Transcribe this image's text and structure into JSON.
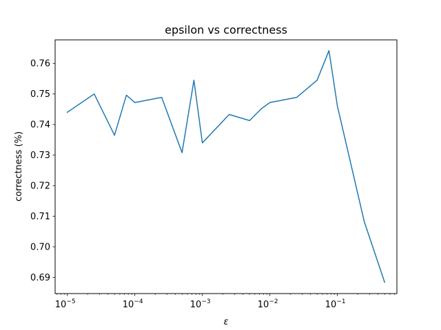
{
  "chart_data": {
    "type": "line",
    "title": "epsilon vs correctness",
    "xlabel": "ε",
    "ylabel": "correctness (%)",
    "xscale": "log",
    "xlim": [
      6.6e-06,
      0.76
    ],
    "ylim": [
      0.6847,
      0.7677
    ],
    "grid": false,
    "legend": "none",
    "series": [
      {
        "color": "#1f77b4",
        "x": [
          1e-05,
          2.5e-05,
          5e-05,
          7.5e-05,
          0.0001,
          0.00025,
          0.0005,
          0.00075,
          0.001,
          0.0025,
          0.005,
          0.0075,
          0.01,
          0.025,
          0.05,
          0.075,
          0.1,
          0.25,
          0.5
        ],
        "y": [
          0.744,
          0.75,
          0.7365,
          0.7496,
          0.7472,
          0.7489,
          0.7308,
          0.7545,
          0.734,
          0.7433,
          0.7413,
          0.7452,
          0.7472,
          0.7489,
          0.7545,
          0.7642,
          0.746,
          0.7082,
          0.6884
        ]
      }
    ],
    "xticks": [
      {
        "base": "10",
        "exp": "−5",
        "value": 1e-05
      },
      {
        "base": "10",
        "exp": "−4",
        "value": 0.0001
      },
      {
        "base": "10",
        "exp": "−3",
        "value": 0.001
      },
      {
        "base": "10",
        "exp": "−2",
        "value": 0.01
      },
      {
        "base": "10",
        "exp": "−1",
        "value": 0.1
      }
    ],
    "yticks": [
      {
        "label": "0.69",
        "value": 0.69
      },
      {
        "label": "0.70",
        "value": 0.7
      },
      {
        "label": "0.71",
        "value": 0.71
      },
      {
        "label": "0.72",
        "value": 0.72
      },
      {
        "label": "0.73",
        "value": 0.73
      },
      {
        "label": "0.74",
        "value": 0.74
      },
      {
        "label": "0.75",
        "value": 0.75
      },
      {
        "label": "0.76",
        "value": 0.76
      }
    ]
  }
}
